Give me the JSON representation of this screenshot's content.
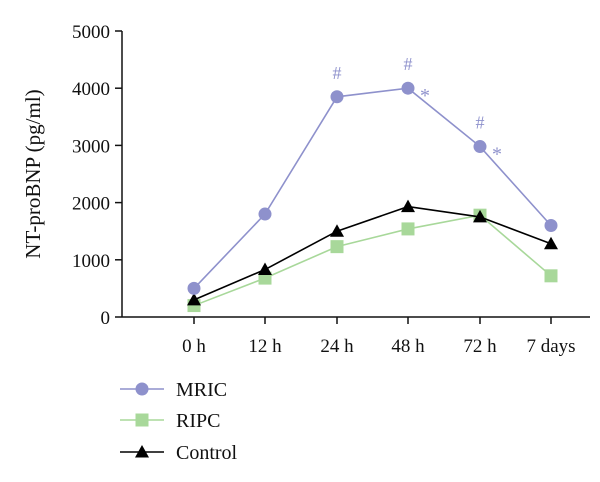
{
  "chart_data": {
    "type": "line",
    "title": "",
    "xlabel": "",
    "ylabel": "NT-proBNP (pg/ml)",
    "categories": [
      "0 h",
      "12 h",
      "24 h",
      "48 h",
      "72 h",
      "7 days"
    ],
    "ylim": [
      0,
      5000
    ],
    "yticks": [
      0,
      1000,
      2000,
      3000,
      4000,
      5000
    ],
    "grid": false,
    "legend_position": "bottom-left",
    "series": [
      {
        "name": "MRIC",
        "color": "#8E91CC",
        "marker": "circle",
        "values": [
          500,
          1800,
          3850,
          4000,
          2980,
          1600
        ]
      },
      {
        "name": "RIPC",
        "color": "#A8D89A",
        "marker": "square",
        "values": [
          200,
          680,
          1230,
          1540,
          1780,
          720
        ]
      },
      {
        "name": "Control",
        "color": "#000000",
        "marker": "triangle",
        "values": [
          300,
          830,
          1500,
          1930,
          1750,
          1280
        ]
      }
    ],
    "annotations": [
      {
        "category": "24 h",
        "text": "#"
      },
      {
        "category": "48 h",
        "text": "#"
      },
      {
        "category": "48 h",
        "text": "*"
      },
      {
        "category": "72 h",
        "text": "#"
      },
      {
        "category": "72 h",
        "text": "*"
      }
    ],
    "annotation_color": "#8E91CC"
  }
}
